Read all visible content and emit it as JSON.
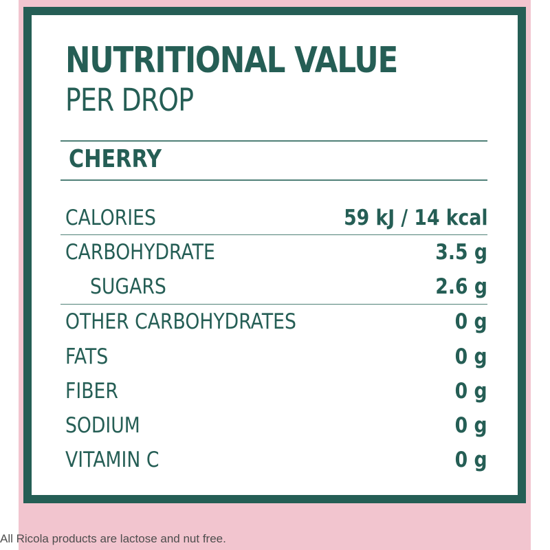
{
  "title": "NUTRITIONAL VALUE",
  "subtitle": "PER DROP",
  "flavor": "CHERRY",
  "rows": [
    {
      "label": "CALORIES",
      "value": "59 kJ / 14 kcal"
    },
    {
      "label": "CARBOHYDRATE",
      "value": "3.5 g"
    },
    {
      "label": "SUGARS",
      "value": "2.6 g"
    },
    {
      "label": "OTHER CARBOHYDRATES",
      "value": "0 g"
    },
    {
      "label": "FATS",
      "value": "0 g"
    },
    {
      "label": "FIBER",
      "value": "0 g"
    },
    {
      "label": "SODIUM",
      "value": "0 g"
    },
    {
      "label": "VITAMIN C",
      "value": "0 g"
    }
  ],
  "footnote": "All Ricola products are lactose and nut free.",
  "colors": {
    "brand_green": "#255e55",
    "background_pink": "#f2c5cf"
  }
}
